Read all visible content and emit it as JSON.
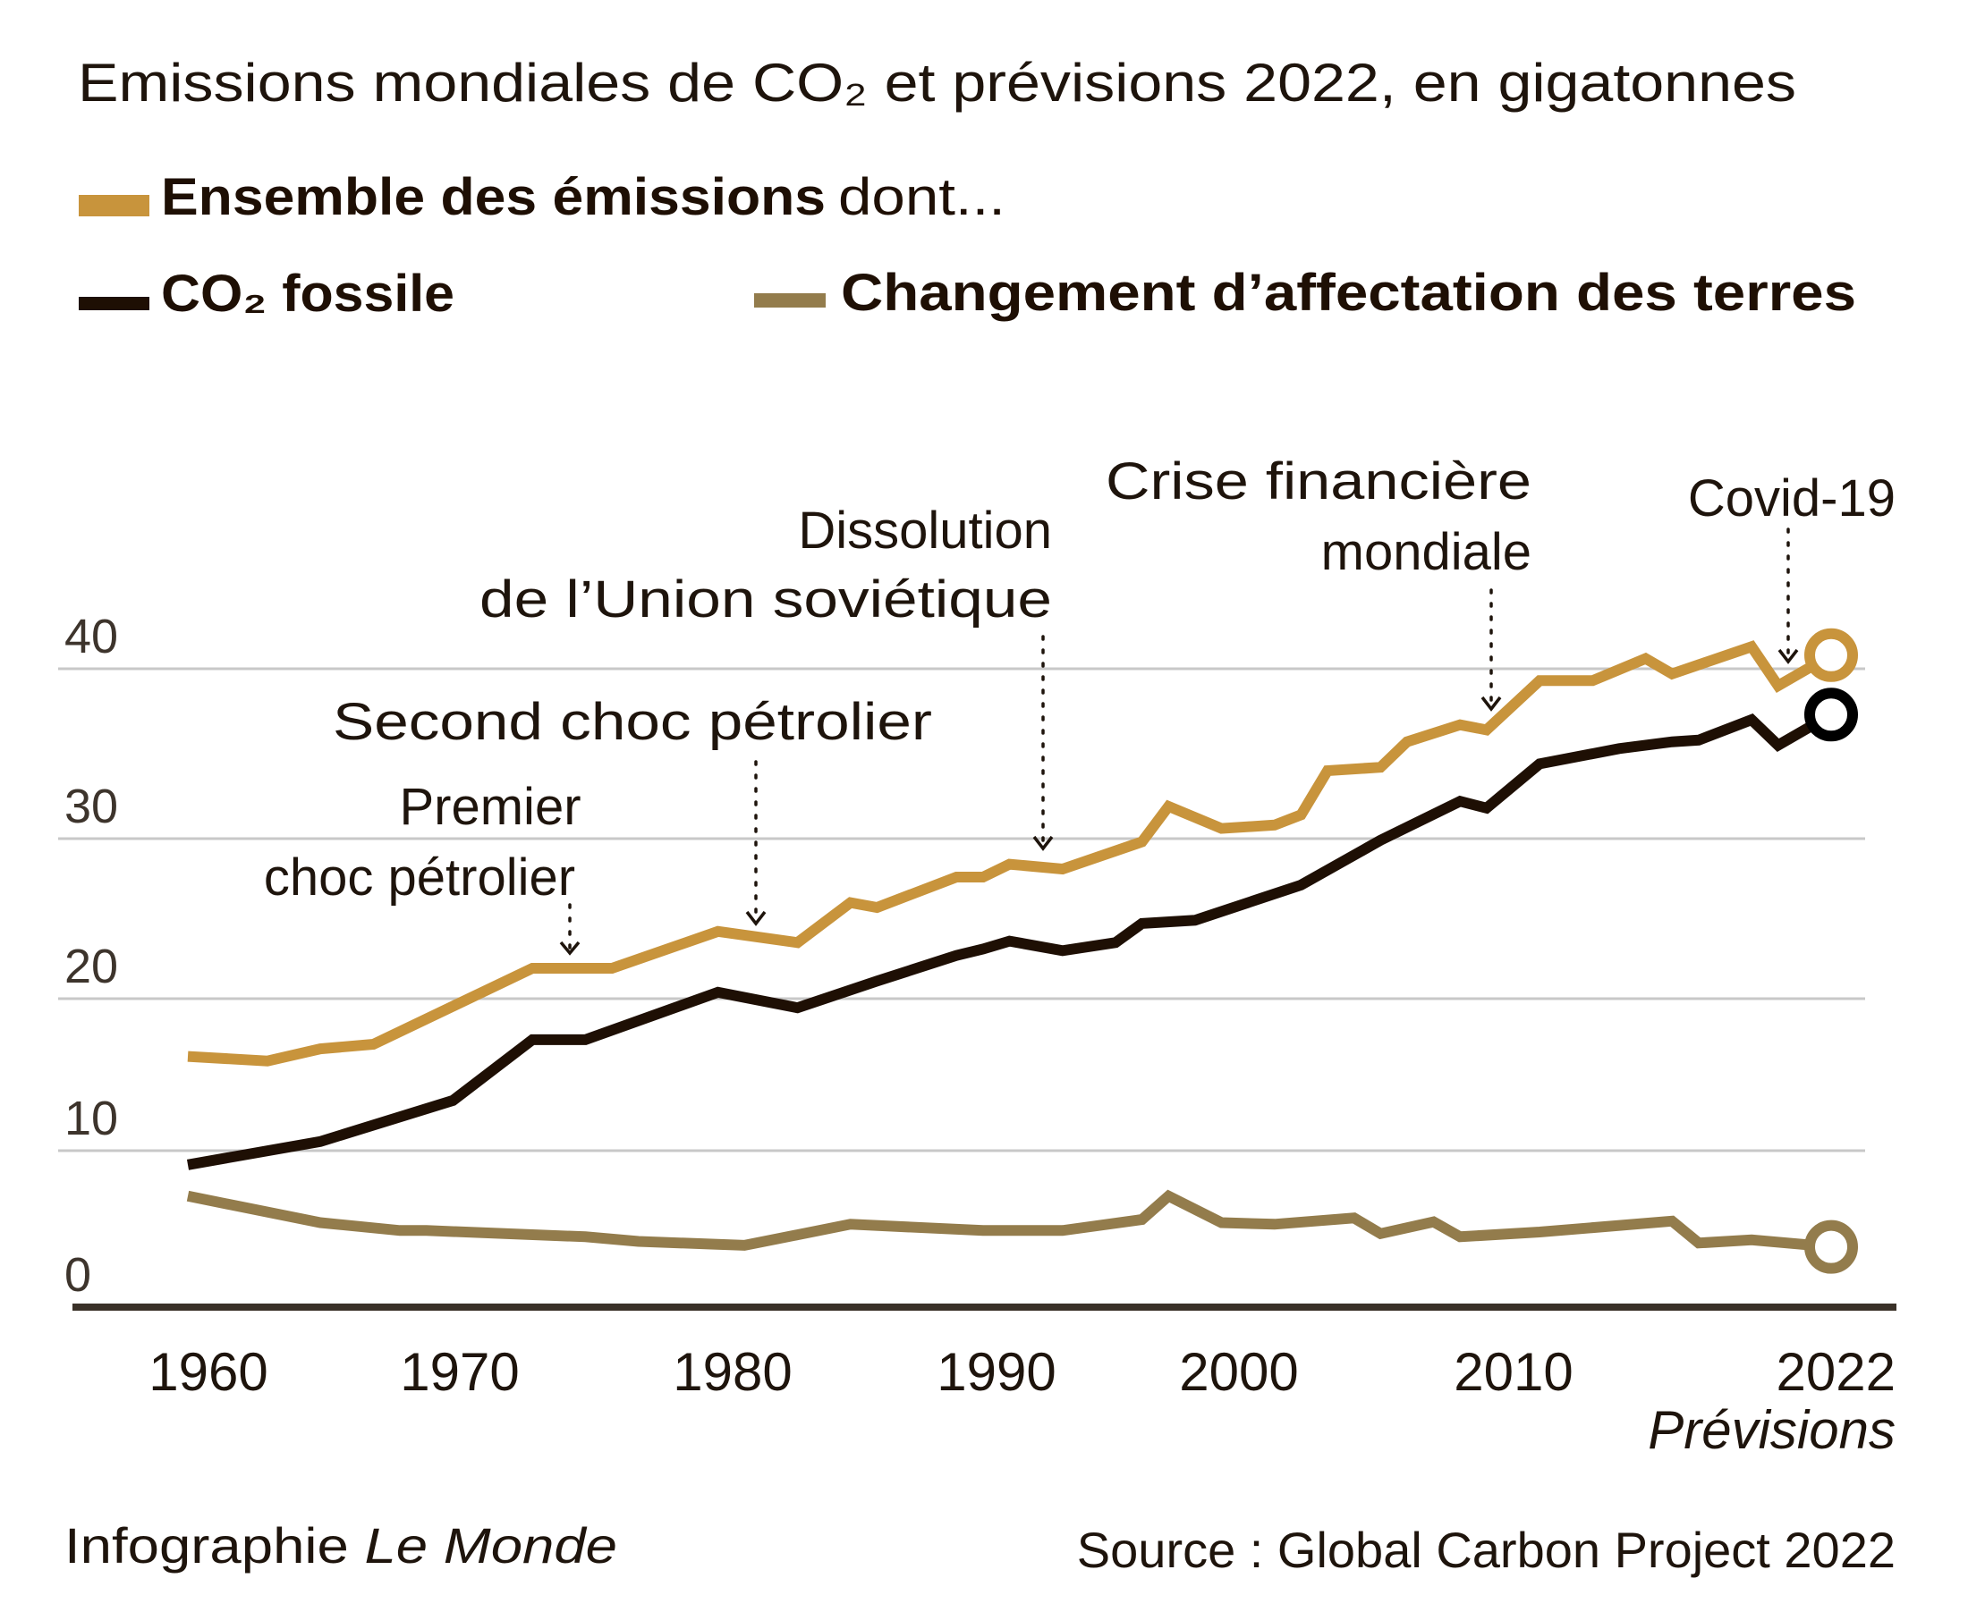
{
  "chart_data": {
    "type": "line",
    "title": "Emissions mondiales de CO₂ et prévisions 2022, en gigatonnes",
    "xlabel": "",
    "ylabel": "",
    "ylim": [
      0,
      40
    ],
    "xlim": [
      1960,
      2022
    ],
    "grid": true,
    "legend_position": "top-left",
    "yticks": [
      {
        "value": 0,
        "label": "0"
      },
      {
        "value": 10,
        "label": "10"
      },
      {
        "value": 20,
        "label": "20"
      },
      {
        "value": 30,
        "label": "30"
      },
      {
        "value": 40,
        "label": "40"
      }
    ],
    "xticks": [
      {
        "value": 1960,
        "label": "1960"
      },
      {
        "value": 1970,
        "label": "1970"
      },
      {
        "value": 1980,
        "label": "1980"
      },
      {
        "value": 1990,
        "label": "1990"
      },
      {
        "value": 2000,
        "label": "2000"
      },
      {
        "value": 2010,
        "label": "2010"
      },
      {
        "value": 2022,
        "label": "2022"
      }
    ],
    "xtick_sublabel": {
      "value": 2022,
      "label": "Prévisions"
    },
    "legend": {
      "total_label_bold": "Ensemble des émissions",
      "total_label_suffix": "dont...",
      "fossil_label": "CO₂ fossile",
      "land_label": "Changement d’affectation des terres"
    },
    "series": [
      {
        "name": "Ensemble des émissions",
        "color": "#c8943c",
        "projection_marker": "open-circle",
        "points": [
          [
            1960,
            16.2
          ],
          [
            1963,
            15.9
          ],
          [
            1965,
            16.7
          ],
          [
            1967,
            17.0
          ],
          [
            1973,
            21.9
          ],
          [
            1976,
            21.9
          ],
          [
            1980,
            24.2
          ],
          [
            1983,
            23.5
          ],
          [
            1985,
            26.0
          ],
          [
            1986,
            25.7
          ],
          [
            1989,
            27.6
          ],
          [
            1990,
            27.6
          ],
          [
            1991,
            28.4
          ],
          [
            1993,
            28.1
          ],
          [
            1996,
            29.8
          ],
          [
            1997,
            31.9
          ],
          [
            1999,
            30.6
          ],
          [
            2001,
            30.8
          ],
          [
            2002,
            31.4
          ],
          [
            2003,
            34.0
          ],
          [
            2005,
            34.2
          ],
          [
            2006,
            35.7
          ],
          [
            2008,
            36.7
          ],
          [
            2009,
            36.4
          ],
          [
            2011,
            39.3
          ],
          [
            2013,
            39.3
          ],
          [
            2015,
            40.6
          ],
          [
            2016,
            39.7
          ],
          [
            2019,
            41.3
          ],
          [
            2020,
            39.0
          ],
          [
            2022,
            40.8
          ]
        ]
      },
      {
        "name": "CO₂ fossile",
        "color": "#1e0f04",
        "projection_marker": "open-circle",
        "marker_color": "#000000",
        "points": [
          [
            1960,
            9.1
          ],
          [
            1965,
            10.6
          ],
          [
            1970,
            13.3
          ],
          [
            1973,
            17.3
          ],
          [
            1975,
            17.3
          ],
          [
            1980,
            20.4
          ],
          [
            1983,
            19.4
          ],
          [
            1986,
            21.1
          ],
          [
            1989,
            22.7
          ],
          [
            1990,
            23.1
          ],
          [
            1991,
            23.6
          ],
          [
            1993,
            23.0
          ],
          [
            1995,
            23.5
          ],
          [
            1996,
            24.7
          ],
          [
            1998,
            24.9
          ],
          [
            2002,
            27.1
          ],
          [
            2005,
            29.9
          ],
          [
            2008,
            32.2
          ],
          [
            2009,
            31.8
          ],
          [
            2011,
            34.4
          ],
          [
            2014,
            35.3
          ],
          [
            2016,
            35.7
          ],
          [
            2017,
            35.8
          ],
          [
            2019,
            37.0
          ],
          [
            2020,
            35.5
          ],
          [
            2022,
            37.3
          ]
        ]
      },
      {
        "name": "Changement d’affectation des terres",
        "color": "#937c4c",
        "projection_marker": "open-circle",
        "points": [
          [
            1960,
            7.1
          ],
          [
            1965,
            5.4
          ],
          [
            1968,
            4.9
          ],
          [
            1969,
            4.9
          ],
          [
            1975,
            4.5
          ],
          [
            1977,
            4.2
          ],
          [
            1981,
            3.95
          ],
          [
            1985,
            5.3
          ],
          [
            1990,
            4.9
          ],
          [
            1993,
            4.9
          ],
          [
            1996,
            5.6
          ],
          [
            1997,
            7.1
          ],
          [
            1999,
            5.4
          ],
          [
            2001,
            5.3
          ],
          [
            2004,
            5.7
          ],
          [
            2005,
            4.7
          ],
          [
            2007,
            5.45
          ],
          [
            2008,
            4.5
          ],
          [
            2011,
            4.8
          ],
          [
            2016,
            5.5
          ],
          [
            2017,
            4.1
          ],
          [
            2019,
            4.3
          ],
          [
            2022,
            3.85
          ]
        ]
      }
    ],
    "annotations": [
      {
        "lines": [
          "Premier",
          "choc pétrolier"
        ],
        "year": 1974,
        "series": "Ensemble des émissions"
      },
      {
        "lines": [
          "Second choc pétrolier"
        ],
        "year": 1981,
        "series": "Ensemble des émissions"
      },
      {
        "lines": [
          "Dissolution",
          "de l’Union soviétique"
        ],
        "year": 1992,
        "series": "Ensemble des émissions"
      },
      {
        "lines": [
          "Crise financière",
          "mondiale"
        ],
        "year": 2009,
        "series": "Ensemble des émissions"
      },
      {
        "lines": [
          "Covid-19"
        ],
        "year": 2020,
        "series": "Ensemble des émissions"
      }
    ]
  },
  "footer": {
    "credit_prefix": "Infographie",
    "credit_brand": "Le Monde",
    "source": "Source : Global Carbon Project 2022"
  }
}
